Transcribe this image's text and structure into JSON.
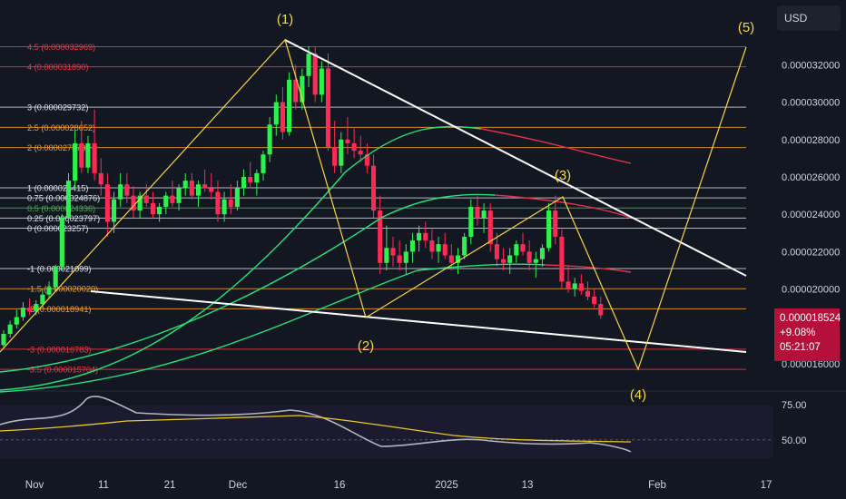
{
  "toolbar": {
    "currency": "USD"
  },
  "price_badge": {
    "price": "0.000018524",
    "change": "+9.08%",
    "countdown": "05:21:07"
  },
  "colors": {
    "background": "#131722",
    "up": "#2cf24f",
    "down": "#ff2a55",
    "pattern": "#f5d742",
    "trendline": "#ffffff",
    "rsi": "#b2b5be",
    "rsi_ma": "#e6c829",
    "price_badge": "#b5103a"
  },
  "chart_data": [
    {
      "type": "candlestick",
      "x_ticks": [
        "Nov",
        "11",
        "21",
        "Dec",
        "16",
        "2025",
        "13",
        "Feb",
        "17"
      ],
      "y_ticks": [
        1.6e-05,
        1.8e-05,
        2e-05,
        2.2e-05,
        2.4e-05,
        2.6e-05,
        2.8e-05,
        3e-05,
        3.2e-05
      ],
      "y_tick_labels": [
        "0.000016000",
        "0.000018000",
        "0.000020000",
        "0.000022000",
        "0.000024000",
        "0.000026000",
        "0.000028000",
        "0.000030000",
        "0.000032000"
      ],
      "ylim": [
        1.54e-05,
        3.4e-05
      ],
      "fib_levels": [
        {
          "label": "4.5 (0.000032969)",
          "value": 3.2969e-05,
          "color": "#f23645"
        },
        {
          "label": "4 (0.000031890)",
          "value": 3.189e-05,
          "color": "#f23645"
        },
        {
          "label": "3 (0.000029732)",
          "value": 2.9732e-05,
          "color": "#d1d4dc"
        },
        {
          "label": "2.5 (0.000028652)",
          "value": 2.8652e-05,
          "color": "#f0a030"
        },
        {
          "label": "2 (0.000027573)",
          "value": 2.7573e-05,
          "color": "#f0a030"
        },
        {
          "label": "1 (0.000025415)",
          "value": 2.5415e-05,
          "color": "#d1d4dc"
        },
        {
          "label": "0.75 (0.000024876)",
          "value": 2.4876e-05,
          "color": "#d1d4dc"
        },
        {
          "label": "0.5 (0.000024336)",
          "value": 2.4336e-05,
          "color": "#4caf50"
        },
        {
          "label": "0.25 (0.000023797)",
          "value": 2.3797e-05,
          "color": "#d1d4dc"
        },
        {
          "label": "0 (0.000023257)",
          "value": 2.3257e-05,
          "color": "#d1d4dc"
        },
        {
          "label": "-1 (0.000021099)",
          "value": 2.1099e-05,
          "color": "#d1d4dc"
        },
        {
          "label": "-1.5 (0.000020020)",
          "value": 2.002e-05,
          "color": "#f0a030"
        },
        {
          "label": "-2 (0.000018941)",
          "value": 1.8941e-05,
          "color": "#f0a030"
        },
        {
          "label": "-3 (0.000016783)",
          "value": 1.6783e-05,
          "color": "#f23645"
        },
        {
          "label": "-3.5 (0.000015704)",
          "value": 1.5704e-05,
          "color": "#f23645"
        }
      ],
      "wave_labels": [
        "(1)",
        "(2)",
        "(3)",
        "(4)",
        "(5)"
      ],
      "candles": [
        [
          1.7e-05,
          1.78e-05,
          1.69e-05,
          1.76e-05
        ],
        [
          1.76e-05,
          1.83e-05,
          1.74e-05,
          1.81e-05
        ],
        [
          1.81e-05,
          1.89e-05,
          1.79e-05,
          1.85e-05
        ],
        [
          1.85e-05,
          1.93e-05,
          1.83e-05,
          1.9e-05
        ],
        [
          1.9e-05,
          1.95e-05,
          1.86e-05,
          1.88e-05
        ],
        [
          1.88e-05,
          1.94e-05,
          1.86e-05,
          1.92e-05
        ],
        [
          1.92e-05,
          2e-05,
          1.9e-05,
          1.97e-05
        ],
        [
          1.97e-05,
          2.04e-05,
          1.95e-05,
          2.01e-05
        ],
        [
          2.01e-05,
          2.13e-05,
          1.99e-05,
          2.12e-05
        ],
        [
          2.12e-05,
          2.4e-05,
          2.1e-05,
          2.38e-05
        ],
        [
          2.38e-05,
          2.62e-05,
          2.35e-05,
          2.58e-05
        ],
        [
          2.58e-05,
          2.85e-05,
          2.54e-05,
          2.78e-05
        ],
        [
          2.78e-05,
          2.9e-05,
          2.62e-05,
          2.65e-05
        ],
        [
          2.65e-05,
          2.82e-05,
          2.62e-05,
          2.78e-05
        ],
        [
          2.78e-05,
          2.96e-05,
          2.58e-05,
          2.62e-05
        ],
        [
          2.62e-05,
          2.7e-05,
          2.5e-05,
          2.56e-05
        ],
        [
          2.56e-05,
          2.62e-05,
          2.28e-05,
          2.36e-05
        ],
        [
          2.36e-05,
          2.52e-05,
          2.3e-05,
          2.48e-05
        ],
        [
          2.48e-05,
          2.62e-05,
          2.44e-05,
          2.56e-05
        ],
        [
          2.56e-05,
          2.62e-05,
          2.46e-05,
          2.5e-05
        ],
        [
          2.5e-05,
          2.55e-05,
          2.38e-05,
          2.42e-05
        ],
        [
          2.42e-05,
          2.52e-05,
          2.38e-05,
          2.5e-05
        ],
        [
          2.5e-05,
          2.56e-05,
          2.44e-05,
          2.46e-05
        ],
        [
          2.46e-05,
          2.52e-05,
          2.38e-05,
          2.4e-05
        ],
        [
          2.4e-05,
          2.46e-05,
          2.36e-05,
          2.44e-05
        ],
        [
          2.44e-05,
          2.52e-05,
          2.4e-05,
          2.5e-05
        ],
        [
          2.5e-05,
          2.58e-05,
          2.44e-05,
          2.46e-05
        ],
        [
          2.46e-05,
          2.56e-05,
          2.42e-05,
          2.54e-05
        ],
        [
          2.54e-05,
          2.62e-05,
          2.5e-05,
          2.58e-05
        ],
        [
          2.58e-05,
          2.62e-05,
          2.48e-05,
          2.5e-05
        ],
        [
          2.5e-05,
          2.58e-05,
          2.44e-05,
          2.56e-05
        ],
        [
          2.56e-05,
          2.64e-05,
          2.52e-05,
          2.54e-05
        ],
        [
          2.54e-05,
          2.62e-05,
          2.48e-05,
          2.52e-05
        ],
        [
          2.52e-05,
          2.58e-05,
          2.36e-05,
          2.4e-05
        ],
        [
          2.4e-05,
          2.52e-05,
          2.36e-05,
          2.48e-05
        ],
        [
          2.48e-05,
          2.56e-05,
          2.4e-05,
          2.44e-05
        ],
        [
          2.44e-05,
          2.58e-05,
          2.42e-05,
          2.54e-05
        ],
        [
          2.54e-05,
          2.64e-05,
          2.5e-05,
          2.6e-05
        ],
        [
          2.6e-05,
          2.68e-05,
          2.54e-05,
          2.57e-05
        ],
        [
          2.57e-05,
          2.64e-05,
          2.5e-05,
          2.62e-05
        ],
        [
          2.62e-05,
          2.74e-05,
          2.58e-05,
          2.72e-05
        ],
        [
          2.72e-05,
          2.92e-05,
          2.68e-05,
          2.88e-05
        ],
        [
          2.88e-05,
          3.04e-05,
          2.82e-05,
          3e-05
        ],
        [
          3e-05,
          3.08e-05,
          2.8e-05,
          2.84e-05
        ],
        [
          2.84e-05,
          3.16e-05,
          2.82e-05,
          3.12e-05
        ],
        [
          3.12e-05,
          3.2e-05,
          2.96e-05,
          3e-05
        ],
        [
          3e-05,
          3.18e-05,
          2.96e-05,
          3.14e-05
        ],
        [
          3.14e-05,
          3.3e-05,
          3.08e-05,
          3.26e-05
        ],
        [
          3.26e-05,
          3.3e-05,
          3e-05,
          3.04e-05
        ],
        [
          3.04e-05,
          3.22e-05,
          3e-05,
          3.18e-05
        ],
        [
          3.18e-05,
          3.26e-05,
          2.74e-05,
          2.76e-05
        ],
        [
          2.76e-05,
          2.9e-05,
          2.62e-05,
          2.66e-05
        ],
        [
          2.66e-05,
          2.84e-05,
          2.62e-05,
          2.8e-05
        ],
        [
          2.8e-05,
          2.92e-05,
          2.72e-05,
          2.78e-05
        ],
        [
          2.78e-05,
          2.86e-05,
          2.7e-05,
          2.74e-05
        ],
        [
          2.74e-05,
          2.82e-05,
          2.68e-05,
          2.72e-05
        ],
        [
          2.72e-05,
          2.78e-05,
          2.62e-05,
          2.66e-05
        ],
        [
          2.66e-05,
          2.72e-05,
          2.38e-05,
          2.42e-05
        ],
        [
          2.42e-05,
          2.5e-05,
          2.08e-05,
          2.14e-05
        ],
        [
          2.14e-05,
          2.34e-05,
          2.1e-05,
          2.22e-05
        ],
        [
          2.22e-05,
          2.28e-05,
          2.12e-05,
          2.18e-05
        ],
        [
          2.18e-05,
          2.26e-05,
          2.1e-05,
          2.14e-05
        ],
        [
          2.14e-05,
          2.24e-05,
          2.08e-05,
          2.2e-05
        ],
        [
          2.2e-05,
          2.3e-05,
          2.14e-05,
          2.26e-05
        ],
        [
          2.26e-05,
          2.34e-05,
          2.2e-05,
          2.3e-05
        ],
        [
          2.3e-05,
          2.36e-05,
          2.22e-05,
          2.26e-05
        ],
        [
          2.26e-05,
          2.32e-05,
          2.16e-05,
          2.2e-05
        ],
        [
          2.2e-05,
          2.28e-05,
          2.14e-05,
          2.24e-05
        ],
        [
          2.24e-05,
          2.3e-05,
          2.16e-05,
          2.18e-05
        ],
        [
          2.18e-05,
          2.24e-05,
          2.1e-05,
          2.14e-05
        ],
        [
          2.14e-05,
          2.22e-05,
          2.08e-05,
          2.18e-05
        ],
        [
          2.18e-05,
          2.3e-05,
          2.16e-05,
          2.28e-05
        ],
        [
          2.28e-05,
          2.48e-05,
          2.24e-05,
          2.44e-05
        ],
        [
          2.44e-05,
          2.5e-05,
          2.34e-05,
          2.38e-05
        ],
        [
          2.38e-05,
          2.46e-05,
          2.3e-05,
          2.42e-05
        ],
        [
          2.42e-05,
          2.46e-05,
          2.2e-05,
          2.24e-05
        ],
        [
          2.24e-05,
          2.3e-05,
          2.12e-05,
          2.16e-05
        ],
        [
          2.16e-05,
          2.22e-05,
          2.1e-05,
          2.14e-05
        ],
        [
          2.14e-05,
          2.22e-05,
          2.08e-05,
          2.18e-05
        ],
        [
          2.18e-05,
          2.26e-05,
          2.14e-05,
          2.24e-05
        ],
        [
          2.24e-05,
          2.3e-05,
          2.18e-05,
          2.2e-05
        ],
        [
          2.2e-05,
          2.26e-05,
          2.1e-05,
          2.14e-05
        ],
        [
          2.14e-05,
          2.2e-05,
          2.06e-05,
          2.16e-05
        ],
        [
          2.16e-05,
          2.24e-05,
          2.12e-05,
          2.22e-05
        ],
        [
          2.22e-05,
          2.46e-05,
          2.2e-05,
          2.42e-05
        ],
        [
          2.42e-05,
          2.5e-05,
          2.24e-05,
          2.28e-05
        ],
        [
          2.28e-05,
          2.32e-05,
          2e-05,
          2.04e-05
        ],
        [
          2.04e-05,
          2.12e-05,
          1.98e-05,
          2e-05
        ],
        [
          2e-05,
          2.06e-05,
          1.96e-05,
          2.03e-05
        ],
        [
          2.03e-05,
          2.08e-05,
          1.97e-05,
          1.99e-05
        ],
        [
          1.99e-05,
          2.04e-05,
          1.94e-05,
          1.96e-05
        ],
        [
          1.96e-05,
          2e-05,
          1.9e-05,
          1.92e-05
        ],
        [
          1.92e-05,
          1.96e-05,
          1.84e-05,
          1.86e-05
        ]
      ],
      "ma_green_1": [
        1.55e-05,
        1.63e-05,
        1.75e-05,
        1.9e-05,
        2.08e-05,
        2.28e-05,
        2.46e-05,
        2.6e-05,
        2.7e-05,
        2.77e-05,
        2.81e-05,
        2.83e-05,
        2.84e-05,
        2.83e-05,
        2.81e-05,
        2.78e-05,
        2.74e-05
      ],
      "rsi": {
        "y_ticks": [
          75,
          50
        ],
        "y_tick_labels": [
          "75.00",
          "50.00"
        ],
        "ylim": [
          30,
          80
        ]
      }
    }
  ]
}
